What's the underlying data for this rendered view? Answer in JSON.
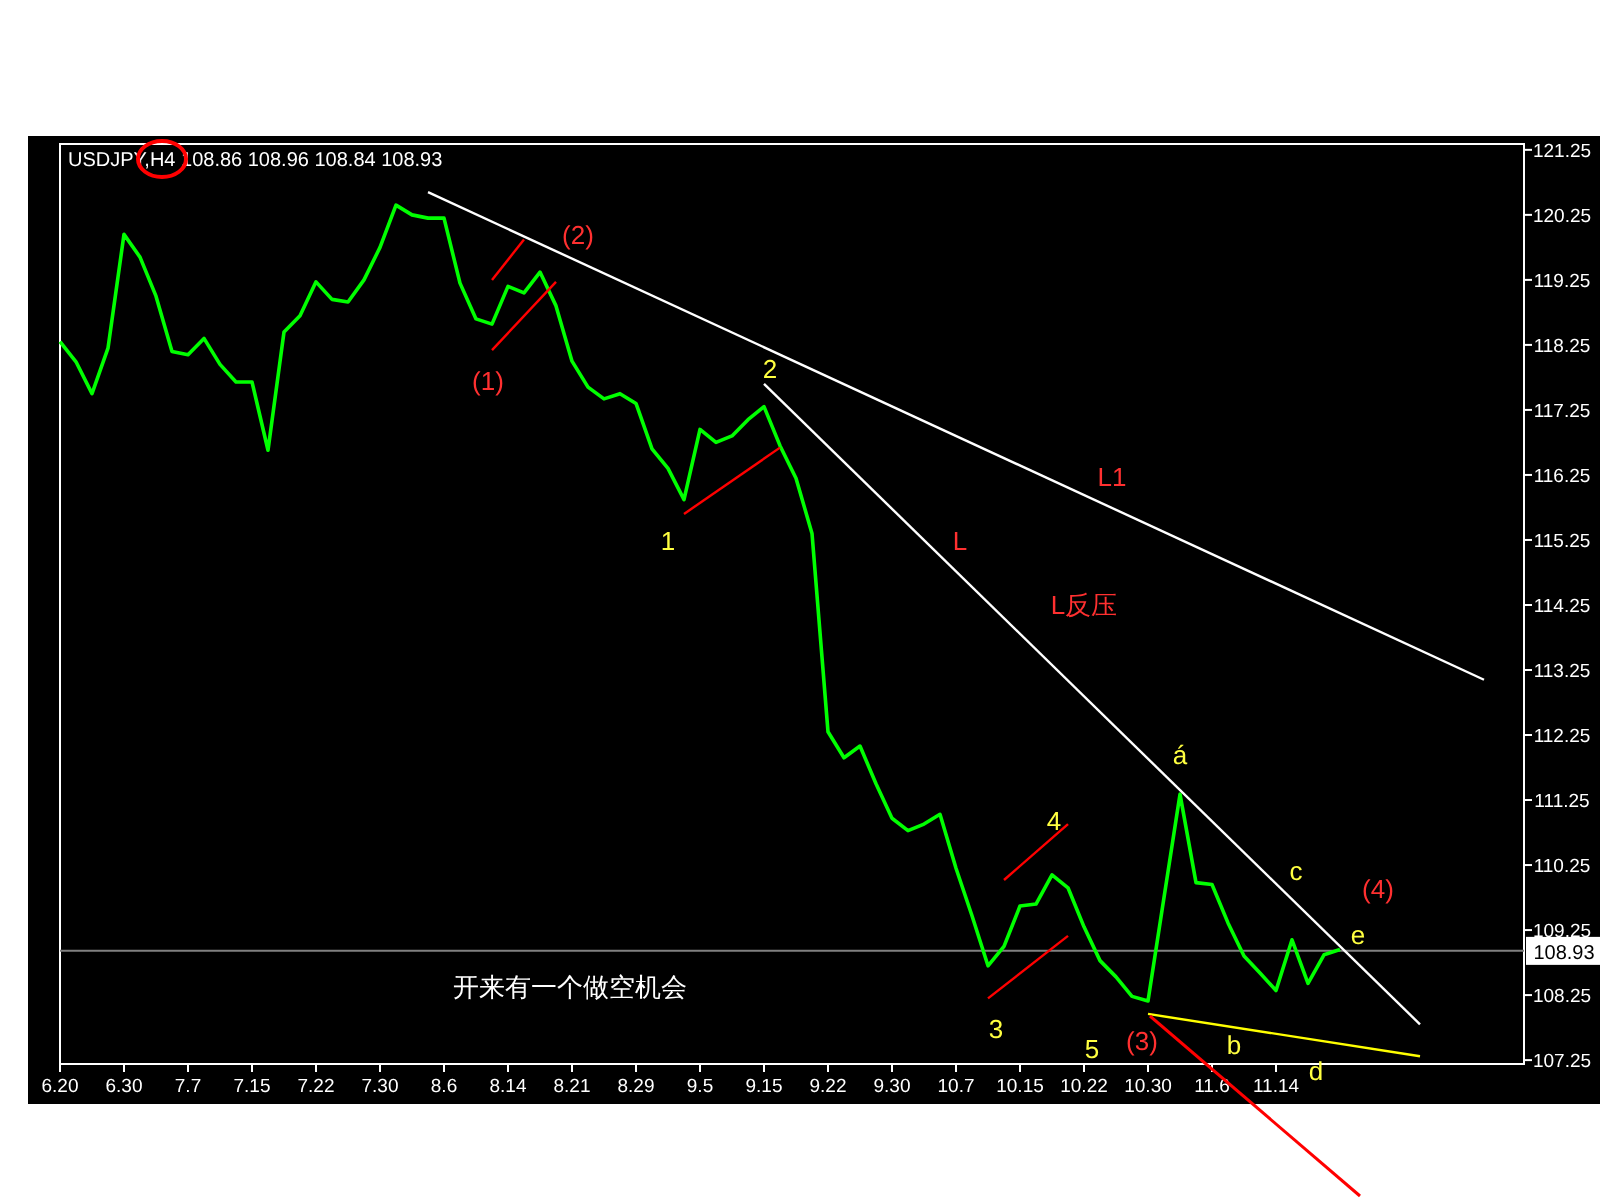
{
  "chart_data": {
    "type": "line",
    "title": "USDJPY,H4 108.86 108.96 108.84 108.93",
    "ylim": [
      107.19,
      121.34
    ],
    "categories": [
      "6.20",
      null,
      null,
      null,
      "6.30",
      null,
      null,
      null,
      "7.7",
      null,
      null,
      null,
      "7.15",
      null,
      null,
      null,
      "7.22",
      null,
      null,
      null,
      "7.30",
      null,
      null,
      null,
      "8.6",
      null,
      null,
      null,
      "8.14",
      null,
      null,
      null,
      "8.21",
      null,
      null,
      null,
      "8.29",
      null,
      null,
      null,
      "9.5",
      null,
      null,
      null,
      "9.15",
      null,
      null,
      null,
      "9.22",
      null,
      null,
      null,
      "9.30",
      null,
      null,
      null,
      "10.7",
      null,
      null,
      null,
      "10.15",
      null,
      null,
      null,
      "10.22",
      null,
      null,
      null,
      "10.30",
      null,
      null,
      null,
      "11.6",
      null,
      null,
      null,
      "11.14",
      null,
      null,
      null,
      null,
      null,
      null,
      null,
      null,
      null,
      null,
      null,
      null,
      null,
      null,
      null
    ],
    "yticks": [
      107.25,
      108.25,
      109.25,
      110.25,
      111.25,
      112.25,
      113.25,
      114.25,
      115.25,
      116.25,
      117.25,
      118.25,
      119.25,
      120.25,
      121.25
    ],
    "series": [
      {
        "color": "#00ff00",
        "values": [
          118.3,
          117.99,
          117.5,
          118.2,
          119.95,
          119.6,
          119.0,
          118.15,
          118.1,
          118.35,
          117.95,
          117.68,
          117.68,
          116.63,
          118.45,
          118.7,
          119.22,
          118.95,
          118.91,
          119.25,
          119.75,
          120.4,
          120.25,
          120.2,
          120.2,
          119.2,
          118.65,
          118.57,
          119.15,
          119.05,
          119.37,
          118.85,
          118.0,
          117.6,
          117.42,
          117.5,
          117.35,
          116.65,
          116.35,
          115.87,
          116.95,
          116.75,
          116.85,
          117.1,
          117.3,
          116.7,
          116.2,
          115.35,
          112.3,
          111.9,
          112.08,
          111.5,
          110.97,
          110.78,
          110.88,
          111.03,
          110.2,
          109.47,
          108.7,
          109.0,
          109.62,
          109.65,
          110.1,
          109.9,
          109.3,
          108.78,
          108.53,
          108.23,
          108.16,
          109.75,
          111.34,
          109.98,
          109.95,
          109.36,
          108.85,
          108.59,
          108.32,
          109.1,
          108.43,
          108.87,
          108.95,
          null,
          null,
          null,
          null,
          null,
          null,
          null,
          null,
          null,
          null,
          null
        ]
      },
      {
        "color": "#ffffff",
        "values": [
          null,
          null,
          null,
          null,
          null,
          null,
          null,
          null,
          null,
          null,
          null,
          null,
          null,
          null,
          null,
          null,
          null,
          null,
          null,
          null,
          null,
          null,
          null,
          120.6,
          null,
          null,
          null,
          null,
          null,
          null,
          null,
          null,
          null,
          null,
          null,
          null,
          null,
          null,
          null,
          null,
          null,
          null,
          null,
          null,
          null,
          null,
          null,
          null,
          null,
          null,
          null,
          null,
          null,
          null,
          null,
          null,
          null,
          null,
          null,
          null,
          null,
          null,
          null,
          null,
          null,
          null,
          null,
          null,
          null,
          null,
          null,
          null,
          null,
          null,
          null,
          null,
          null,
          null,
          null,
          null,
          null,
          null,
          null,
          null,
          null,
          null,
          null,
          null,
          null,
          113.1,
          null,
          null
        ]
      },
      {
        "color": "#ffffff",
        "values": [
          null,
          null,
          null,
          null,
          null,
          null,
          null,
          null,
          null,
          null,
          null,
          null,
          null,
          null,
          null,
          null,
          null,
          null,
          null,
          null,
          null,
          null,
          null,
          null,
          null,
          null,
          null,
          null,
          null,
          null,
          null,
          null,
          null,
          null,
          null,
          null,
          null,
          null,
          null,
          null,
          null,
          null,
          null,
          null,
          117.65,
          null,
          null,
          null,
          null,
          null,
          null,
          null,
          null,
          null,
          null,
          null,
          null,
          null,
          null,
          null,
          null,
          null,
          null,
          null,
          null,
          null,
          null,
          null,
          null,
          null,
          null,
          null,
          null,
          null,
          null,
          null,
          null,
          null,
          null,
          null,
          null,
          null,
          null,
          null,
          null,
          107.8,
          null,
          null,
          null,
          null,
          null,
          null
        ]
      },
      {
        "color": "#ffff00",
        "values": [
          null,
          null,
          null,
          null,
          null,
          null,
          null,
          null,
          null,
          null,
          null,
          null,
          null,
          null,
          null,
          null,
          null,
          null,
          null,
          null,
          null,
          null,
          null,
          null,
          null,
          null,
          null,
          null,
          null,
          null,
          null,
          null,
          null,
          null,
          null,
          null,
          null,
          null,
          null,
          null,
          null,
          null,
          null,
          null,
          null,
          null,
          null,
          null,
          null,
          null,
          null,
          null,
          null,
          null,
          null,
          null,
          null,
          null,
          null,
          null,
          null,
          null,
          null,
          null,
          null,
          null,
          null,
          null,
          107.96,
          null,
          null,
          null,
          null,
          null,
          null,
          null,
          null,
          null,
          null,
          null,
          null,
          null,
          null,
          null,
          null,
          107.31,
          null,
          null,
          null,
          null,
          null,
          null
        ]
      },
      {
        "color": "#ff0000",
        "values": [
          null,
          null,
          null,
          null,
          null,
          null,
          null,
          null,
          null,
          null,
          null,
          null,
          null,
          null,
          null,
          null,
          null,
          null,
          null,
          null,
          null,
          null,
          null,
          null,
          null,
          null,
          null,
          119.25,
          null,
          119.87,
          null,
          null,
          null,
          null,
          null,
          null,
          null,
          null,
          null,
          null,
          null,
          null,
          null,
          null,
          null,
          null,
          null,
          null,
          null,
          null,
          null,
          null,
          null,
          null,
          null,
          null,
          null,
          null,
          null,
          null,
          null,
          null,
          null,
          null,
          null,
          null,
          null,
          null,
          null,
          null,
          null,
          null,
          null,
          null,
          null,
          null,
          null,
          null,
          null,
          null,
          null,
          null,
          null,
          null,
          null,
          null,
          null,
          null,
          null,
          null,
          null,
          null
        ]
      },
      {
        "color": "#ff0000",
        "values": [
          null,
          null,
          null,
          null,
          null,
          null,
          null,
          null,
          null,
          null,
          null,
          null,
          null,
          null,
          null,
          null,
          null,
          null,
          null,
          null,
          null,
          null,
          null,
          null,
          null,
          null,
          null,
          118.17,
          null,
          null,
          null,
          119.22,
          null,
          null,
          null,
          null,
          null,
          null,
          null,
          null,
          null,
          null,
          null,
          null,
          null,
          null,
          null,
          null,
          null,
          null,
          null,
          null,
          null,
          null,
          null,
          null,
          null,
          null,
          null,
          null,
          null,
          null,
          null,
          null,
          null,
          null,
          null,
          null,
          null,
          null,
          null,
          null,
          null,
          null,
          null,
          null,
          null,
          null,
          null,
          null,
          null,
          null,
          null,
          null,
          null,
          null,
          null,
          null,
          null,
          null,
          null,
          null
        ]
      },
      {
        "color": "#ff0000",
        "values": [
          null,
          null,
          null,
          null,
          null,
          null,
          null,
          null,
          null,
          null,
          null,
          null,
          null,
          null,
          null,
          null,
          null,
          null,
          null,
          null,
          null,
          null,
          null,
          null,
          null,
          null,
          null,
          null,
          null,
          null,
          null,
          null,
          null,
          null,
          null,
          null,
          null,
          null,
          null,
          115.65,
          null,
          null,
          null,
          null,
          null,
          116.67,
          null,
          null,
          null,
          null,
          null,
          null,
          null,
          null,
          null,
          null,
          null,
          null,
          null,
          null,
          null,
          null,
          null,
          null,
          null,
          null,
          null,
          null,
          null,
          null,
          null,
          null,
          null,
          null,
          null,
          null,
          null,
          null,
          null,
          null,
          null,
          null,
          null,
          null,
          null,
          null,
          null,
          null,
          null,
          null,
          null,
          null
        ]
      },
      {
        "color": "#ff0000",
        "values": [
          null,
          null,
          null,
          null,
          null,
          null,
          null,
          null,
          null,
          null,
          null,
          null,
          null,
          null,
          null,
          null,
          null,
          null,
          null,
          null,
          null,
          null,
          null,
          null,
          null,
          null,
          null,
          null,
          null,
          null,
          null,
          null,
          null,
          null,
          null,
          null,
          null,
          null,
          null,
          null,
          null,
          null,
          null,
          null,
          null,
          null,
          null,
          null,
          null,
          null,
          null,
          null,
          null,
          null,
          null,
          null,
          null,
          null,
          null,
          110.02,
          null,
          null,
          null,
          110.88,
          null,
          null,
          null,
          null,
          null,
          null,
          null,
          null,
          null,
          null,
          null,
          null,
          null,
          null,
          null,
          null,
          null,
          null,
          null,
          null,
          null,
          null,
          null,
          null,
          null,
          null,
          null,
          null
        ]
      },
      {
        "color": "#ff0000",
        "values": [
          null,
          null,
          null,
          null,
          null,
          null,
          null,
          null,
          null,
          null,
          null,
          null,
          null,
          null,
          null,
          null,
          null,
          null,
          null,
          null,
          null,
          null,
          null,
          null,
          null,
          null,
          null,
          null,
          null,
          null,
          null,
          null,
          null,
          null,
          null,
          null,
          null,
          null,
          null,
          null,
          null,
          null,
          null,
          null,
          null,
          null,
          null,
          null,
          null,
          null,
          null,
          null,
          null,
          null,
          null,
          null,
          null,
          null,
          108.2,
          null,
          null,
          null,
          null,
          109.16,
          null,
          null,
          null,
          null,
          null,
          null,
          null,
          null,
          null,
          null,
          null,
          null,
          null,
          null,
          null,
          null,
          null,
          null,
          null,
          null,
          null,
          null,
          null,
          null,
          null,
          null,
          null,
          null
        ]
      }
    ],
    "ref_lines": [
      {
        "axis": "y",
        "value": 108.93,
        "label": "108.93",
        "color": "#808080"
      }
    ],
    "annotations": [
      "(1)",
      "(2)",
      "1",
      "2",
      "L",
      "L反压",
      "L1",
      "á",
      "4",
      "3",
      "5",
      "(3)",
      "b",
      "c",
      "d",
      "e",
      "(4)",
      "开来有一个做空机会"
    ]
  }
}
